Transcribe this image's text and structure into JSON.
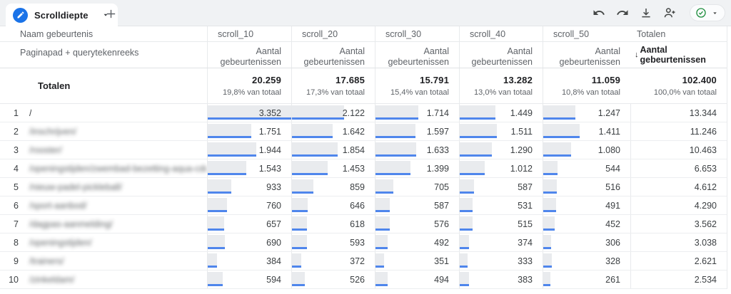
{
  "topbar": {
    "tab_label": "Scrolldiepte"
  },
  "table": {
    "dimension_header": "Naam gebeurtenis",
    "dimension_subheader": "Paginapad + querytekenreeks",
    "metric_columns": [
      "scroll_10",
      "scroll_20",
      "scroll_30",
      "scroll_40",
      "scroll_50"
    ],
    "metric_label": "Aantal gebeurtenissen",
    "totals_header": "Totalen",
    "totals_metric_label": "Aantal gebeurtenissen",
    "sort_indicator": "↓",
    "bar_scale_max": 3352,
    "totals_row": {
      "label": "Totalen",
      "values": [
        "20.259",
        "17.685",
        "15.791",
        "13.282",
        "11.059"
      ],
      "percents": [
        "19,8% van totaal",
        "17,3% van totaal",
        "15,4% van totaal",
        "13,0% van totaal",
        "10,8% van totaal"
      ],
      "total": "102.400",
      "total_percent": "100,0% van totaal"
    },
    "rows": [
      {
        "index": "1",
        "path": "/",
        "redacted": false,
        "values": [
          "3.352",
          "2.122",
          "1.714",
          "1.449",
          "1.247"
        ],
        "total": "13.344"
      },
      {
        "index": "2",
        "path": "/inschrijven/",
        "redacted": true,
        "values": [
          "1.751",
          "1.642",
          "1.597",
          "1.511",
          "1.411"
        ],
        "total": "11.246"
      },
      {
        "index": "3",
        "path": "/rooster/",
        "redacted": true,
        "values": [
          "1.944",
          "1.854",
          "1.633",
          "1.290",
          "1.080"
        ],
        "total": "10.463"
      },
      {
        "index": "4",
        "path": "/openingstijden/zwembad-bezetting-aqua-cdc-3/",
        "redacted": true,
        "values": [
          "1.543",
          "1.453",
          "1.399",
          "1.012",
          "544"
        ],
        "total": "6.653"
      },
      {
        "index": "5",
        "path": "/nieuw-padel-pickleball/",
        "redacted": true,
        "values": [
          "933",
          "859",
          "705",
          "587",
          "516"
        ],
        "total": "4.612"
      },
      {
        "index": "6",
        "path": "/sport-aanbod/",
        "redacted": true,
        "values": [
          "760",
          "646",
          "587",
          "531",
          "491"
        ],
        "total": "4.290"
      },
      {
        "index": "7",
        "path": "/dagpas-aanmelding/",
        "redacted": true,
        "values": [
          "657",
          "618",
          "576",
          "515",
          "452"
        ],
        "total": "3.562"
      },
      {
        "index": "8",
        "path": "/openingstijden/",
        "redacted": true,
        "values": [
          "690",
          "593",
          "492",
          "374",
          "306"
        ],
        "total": "3.038"
      },
      {
        "index": "9",
        "path": "/trainers/",
        "redacted": true,
        "values": [
          "384",
          "372",
          "351",
          "333",
          "328"
        ],
        "total": "2.621"
      },
      {
        "index": "10",
        "path": "/zinkeldam/",
        "redacted": true,
        "values": [
          "594",
          "526",
          "494",
          "383",
          "261"
        ],
        "total": "2.534"
      }
    ]
  },
  "colors": {
    "accent_blue": "#1a73e8",
    "bar_fill": "#e9ebee",
    "bar_underline": "#4f86ec",
    "success_green": "#1e8e3e"
  }
}
